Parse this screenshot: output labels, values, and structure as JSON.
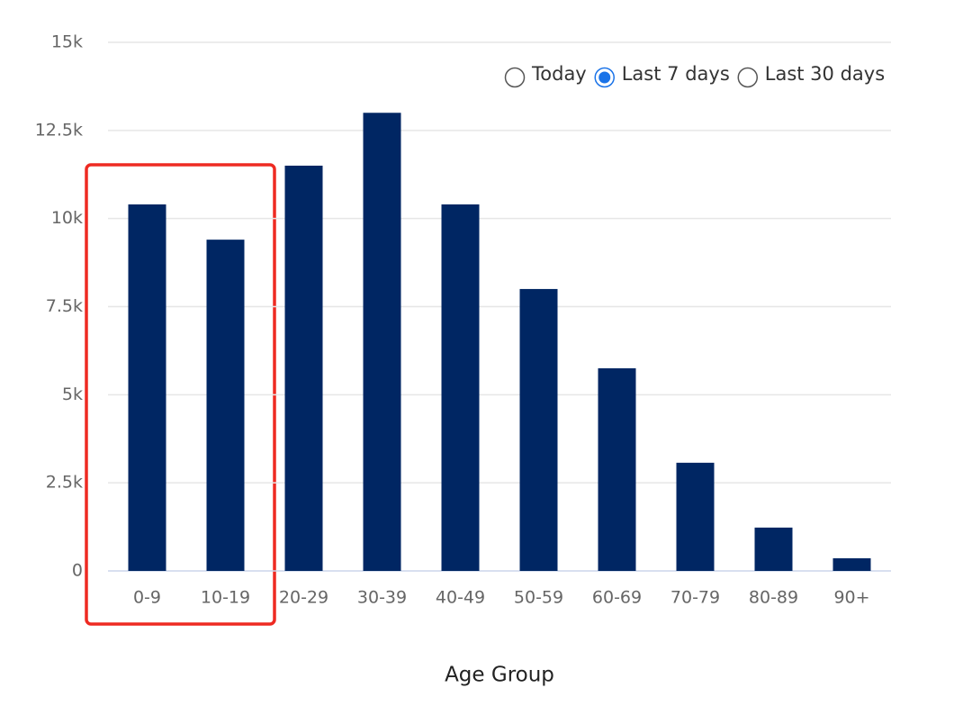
{
  "chart_data": {
    "type": "bar",
    "x_label": "Age Group",
    "categories": [
      "0-9",
      "10-19",
      "20-29",
      "30-39",
      "40-49",
      "50-59",
      "60-69",
      "70-79",
      "80-89",
      "90+"
    ],
    "values": [
      10400,
      9400,
      11500,
      13000,
      10400,
      8000,
      5750,
      3070,
      1230,
      360
    ],
    "color": "#002663",
    "ylim": [
      0,
      15000
    ],
    "yticks": [
      0,
      {
        "value": 2500,
        "label": "2.5k"
      },
      {
        "value": 5000,
        "label": "5k"
      },
      {
        "value": 7500,
        "label": "7.5k"
      },
      {
        "value": 10000,
        "label": "10k"
      },
      {
        "value": 12500,
        "label": "12.5k"
      },
      {
        "value": 15000,
        "label": "15k"
      }
    ],
    "grid": true,
    "range_options": [
      "Today",
      "Last 7 days",
      "Last 30 days"
    ],
    "selected_option": 1
  }
}
